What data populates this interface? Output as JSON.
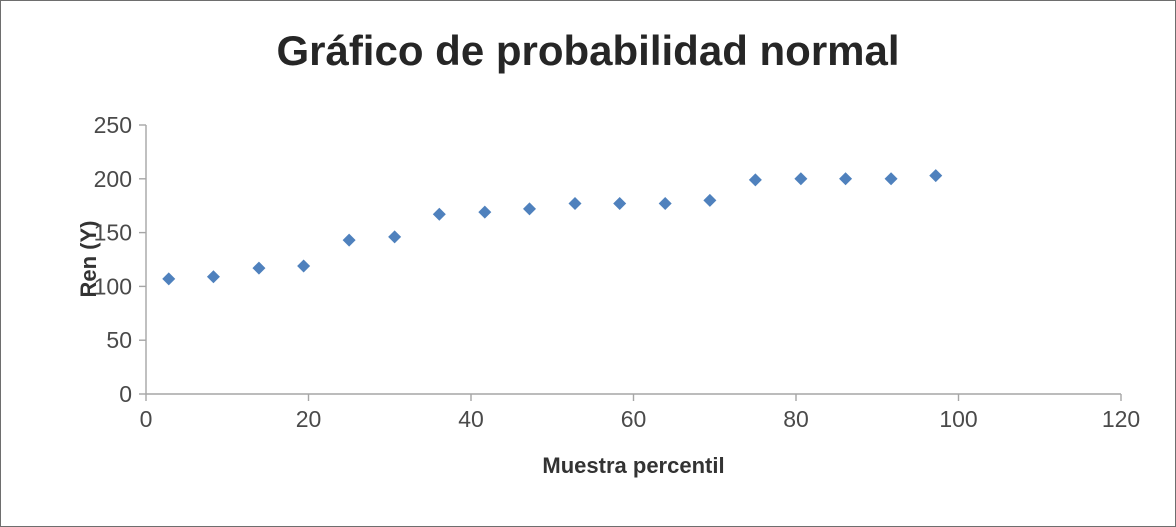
{
  "chart_data": {
    "type": "scatter",
    "title": "Gráfico de probabilidad normal",
    "xlabel": "Muestra percentil",
    "ylabel": "Ren (Y)",
    "xlim": [
      0,
      120
    ],
    "ylim": [
      0,
      250
    ],
    "x_ticks": [
      0,
      20,
      40,
      60,
      80,
      100,
      120
    ],
    "y_ticks": [
      0,
      50,
      100,
      150,
      200,
      250
    ],
    "grid": false,
    "legend": false,
    "marker": "diamond",
    "marker_color": "#4F81BD",
    "axis_color": "#A6A6A6",
    "tick_label_color": "#4A4A4A",
    "series": [
      {
        "name": "Ren (Y)",
        "x": [
          2.8,
          8.3,
          13.9,
          19.4,
          25.0,
          30.6,
          36.1,
          41.7,
          47.2,
          52.8,
          58.3,
          63.9,
          69.4,
          75.0,
          80.6,
          86.1,
          91.7,
          97.2
        ],
        "y": [
          107,
          109,
          117,
          119,
          143,
          146,
          167,
          169,
          172,
          177,
          177,
          177,
          180,
          199,
          200,
          200,
          200,
          203
        ]
      }
    ]
  }
}
